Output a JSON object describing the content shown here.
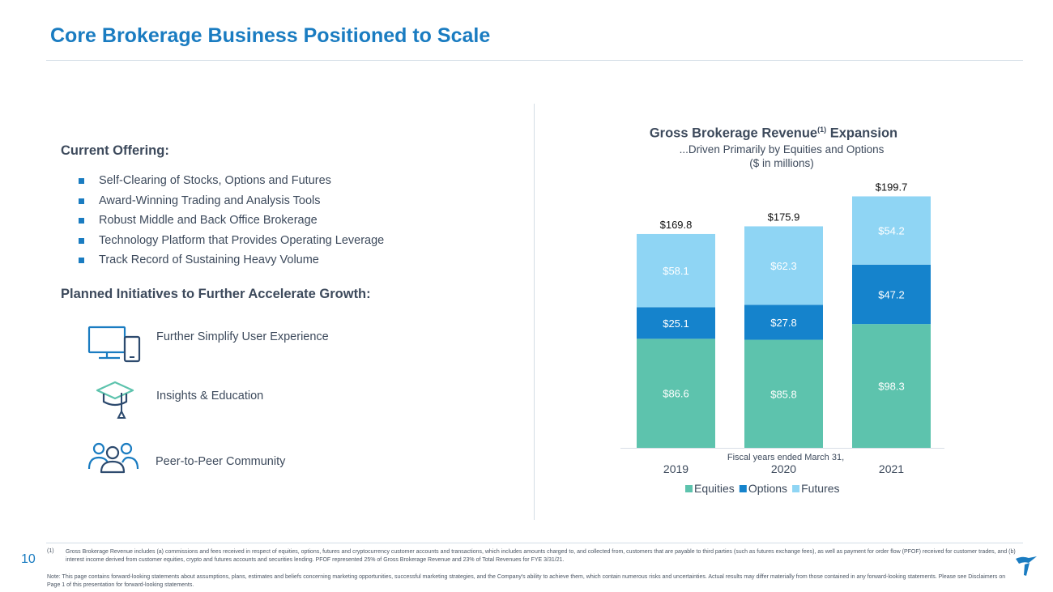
{
  "header": {
    "title": "Core Brokerage Business Positioned to Scale"
  },
  "current_offering": {
    "heading": "Current Offering:",
    "items": [
      "Self-Clearing of Stocks, Options and Futures",
      "Award-Winning Trading and Analysis Tools",
      "Robust Middle and Back Office Brokerage",
      "Technology Platform that Provides Operating Leverage",
      "Track Record of Sustaining Heavy Volume"
    ]
  },
  "initiatives": {
    "heading": "Planned Initiatives to Further Accelerate Growth:",
    "items": [
      {
        "label": "Further Simplify User Experience",
        "icon": "devices-icon"
      },
      {
        "label": "Insights & Education",
        "icon": "graduation-cap-icon"
      },
      {
        "label": "Peer-to-Peer Community",
        "icon": "community-icon"
      }
    ]
  },
  "chart_data": {
    "type": "bar",
    "stacked": true,
    "title": "Gross Brokerage Revenue",
    "title_superscript": "(1)",
    "title_suffix": " Expansion",
    "subtitle": "...Driven Primarily by Equities and Options",
    "units": "($ in millions)",
    "xlabel": "Fiscal years ended March 31,",
    "categories": [
      "2019",
      "2020",
      "2021"
    ],
    "series": [
      {
        "name": "Equities",
        "color": "#5dc3ad",
        "values": [
          86.6,
          85.8,
          98.3
        ],
        "labels": [
          "$86.6",
          "$85.8",
          "$98.3"
        ]
      },
      {
        "name": "Options",
        "color": "#1583cc",
        "values": [
          25.1,
          27.8,
          47.2
        ],
        "labels": [
          "$25.1",
          "$27.8",
          "$47.2"
        ]
      },
      {
        "name": "Futures",
        "color": "#8fd5f4",
        "values": [
          58.1,
          62.3,
          54.2
        ],
        "labels": [
          "$58.1",
          "$62.3",
          "$54.2"
        ]
      }
    ],
    "totals": [
      169.8,
      175.9,
      199.7
    ],
    "total_labels": [
      "$169.8",
      "$175.9",
      "$199.7"
    ],
    "ylim": [
      0,
      200
    ],
    "legend": "bottom-center"
  },
  "footer": {
    "page_number": "10",
    "footnote_marker": "(1)",
    "footnote": "Gross Brokerage Revenue includes (a) commissions and fees received in respect of equities, options, futures and cryptocurrency customer accounts and transactions, which includes amounts charged to, and collected from, customers that are payable to third parties (such as futures exchange fees), as well as payment for order flow (PFOF) received for customer trades, and (b) interest income derived from customer equities, crypto and futures accounts and securities lending. PFOF represented 25% of Gross Brokerage Revenue and 23% of Total Revenues for FYE 3/31/21.",
    "note": "Note: This page contains forward-looking statements about assumptions, plans, estimates and beliefs concerning marketing opportunities, successful marketing strategies, and the Company's ability to achieve them, which contain numerous risks and uncertainties. Actual results may differ materially from those contained in any forward-looking statements. Please see Disclaimers on Page 1 of this presentation for forward-looking statements."
  },
  "colors": {
    "accent": "#1a7cc1",
    "text": "#3d4a5c"
  }
}
